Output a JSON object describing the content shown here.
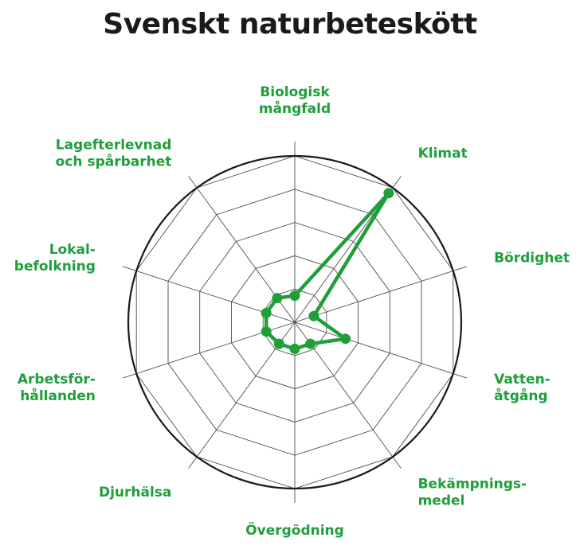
{
  "title": "Svenskt naturbeteskött",
  "colors": {
    "series": "#1f9e3a",
    "label": "#1f9e3a",
    "grid": "#4d4d4d",
    "outer_ring": "#1a1a1a",
    "title": "#1a1a1a"
  },
  "chart_data": {
    "type": "radar",
    "title": "Svenskt naturbeteskött",
    "axes": [
      {
        "lines": [
          "Biologisk",
          "mångfald"
        ]
      },
      {
        "lines": [
          "Klimat"
        ]
      },
      {
        "lines": [
          "Bördighet"
        ]
      },
      {
        "lines": [
          "Vatten-",
          "åtgång"
        ]
      },
      {
        "lines": [
          "Bekämpnings-",
          "medel"
        ]
      },
      {
        "lines": [
          "Övergödning"
        ]
      },
      {
        "lines": [
          "Djurhälsa"
        ]
      },
      {
        "lines": [
          "Arbetsför-",
          "hållanden"
        ]
      },
      {
        "lines": [
          "Lokal-",
          "befolkning"
        ]
      },
      {
        "lines": [
          "Lagefterlevnad",
          "och spårbarhet"
        ]
      }
    ],
    "grid_levels": 5,
    "grid_shape": "polygon",
    "outer_boundary": "circle",
    "range": [
      0,
      5
    ],
    "series": [
      {
        "values": [
          0.8,
          4.8,
          0.6,
          1.6,
          0.8,
          0.8,
          0.8,
          0.9,
          0.9,
          0.9
        ]
      }
    ]
  }
}
